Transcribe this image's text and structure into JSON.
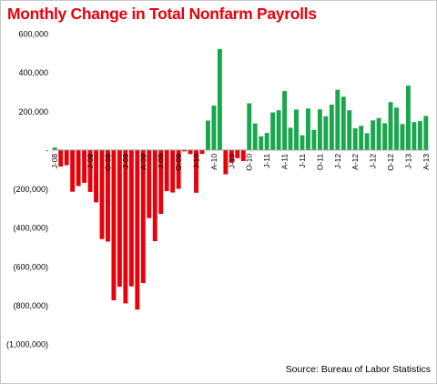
{
  "chart_data": {
    "type": "bar",
    "title": "Monthly Change in Total Nonfarm Payrolls",
    "source": "Source: Bureau of Labor Statistics",
    "ylim": [
      -1000000,
      600000
    ],
    "grid": false,
    "legend": "none",
    "y_ticks": [
      {
        "value": 600000,
        "label": "600,000"
      },
      {
        "value": 400000,
        "label": "400,000"
      },
      {
        "value": 200000,
        "label": "200,000"
      },
      {
        "value": 0,
        "label": "-"
      },
      {
        "value": -200000,
        "label": "(200,000)"
      },
      {
        "value": -400000,
        "label": "(400,000)"
      },
      {
        "value": -600000,
        "label": "(600,000)"
      },
      {
        "value": -800000,
        "label": "(800,000)"
      },
      {
        "value": -1000000,
        "label": "(1,000,000)"
      }
    ],
    "x_ticks": [
      {
        "index": 0,
        "label": "J-08"
      },
      {
        "index": 6,
        "label": "J-08"
      },
      {
        "index": 9,
        "label": "O-08"
      },
      {
        "index": 12,
        "label": "J-09"
      },
      {
        "index": 15,
        "label": "A-09"
      },
      {
        "index": 18,
        "label": "J-09"
      },
      {
        "index": 21,
        "label": "O-09"
      },
      {
        "index": 24,
        "label": "J-10"
      },
      {
        "index": 27,
        "label": "A-10"
      },
      {
        "index": 30,
        "label": "J-10"
      },
      {
        "index": 33,
        "label": "O-10"
      },
      {
        "index": 36,
        "label": "J-11"
      },
      {
        "index": 39,
        "label": "A-11"
      },
      {
        "index": 42,
        "label": "J-11"
      },
      {
        "index": 45,
        "label": "O-11"
      },
      {
        "index": 48,
        "label": "J-12"
      },
      {
        "index": 51,
        "label": "A-12"
      },
      {
        "index": 54,
        "label": "J-12"
      },
      {
        "index": 57,
        "label": "O-12"
      },
      {
        "index": 60,
        "label": "J-13"
      },
      {
        "index": 63,
        "label": "A-13"
      }
    ],
    "colors": {
      "positive": "#1aa64d",
      "negative": "#e8000b"
    },
    "values": [
      13000,
      -85000,
      -78000,
      -215000,
      -186000,
      -169000,
      -216000,
      -270000,
      -459000,
      -472000,
      -775000,
      -705000,
      -791000,
      -703000,
      -823000,
      -686000,
      -351000,
      -470000,
      -329000,
      -212000,
      -219000,
      -200000,
      -7000,
      -21000,
      -220000,
      -20000,
      152000,
      229000,
      521000,
      -125000,
      -66000,
      -42000,
      -57000,
      241000,
      137000,
      71000,
      88000,
      194000,
      205000,
      304000,
      115000,
      209000,
      76000,
      214000,
      104000,
      210000,
      174000,
      234000,
      311000,
      275000,
      205000,
      112000,
      125000,
      87000,
      153000,
      165000,
      138000,
      247000,
      219000,
      134000,
      332000,
      144000,
      149000,
      176000
    ]
  }
}
